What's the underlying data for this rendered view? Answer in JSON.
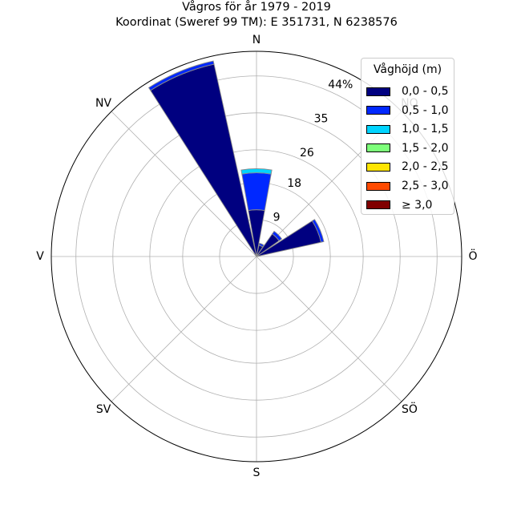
{
  "title": {
    "line1": "Vågros för år 1979 - 2019",
    "line2": "Koordinat (Sweref 99 TM): E 351731, N 6238576"
  },
  "chart_data": {
    "type": "polar-bar",
    "title": "Vågros för år 1979 - 2019",
    "subtitle": "Koordinat (Sweref 99 TM): E 351731, N 6238576",
    "radial_unit": "%",
    "rmax": 50,
    "radial_ticks": [
      9,
      18,
      26,
      35,
      44
    ],
    "radial_tick_labels": [
      "9",
      "18",
      "26",
      "35",
      "44%"
    ],
    "grid": true,
    "direction_labels": [
      {
        "angle": 0,
        "label": "N"
      },
      {
        "angle": 45,
        "label": "NO"
      },
      {
        "angle": 90,
        "label": "Ö"
      },
      {
        "angle": 135,
        "label": "SÖ"
      },
      {
        "angle": 180,
        "label": "S"
      },
      {
        "angle": 225,
        "label": "SV"
      },
      {
        "angle": 270,
        "label": "V"
      },
      {
        "angle": 315,
        "label": "NV"
      }
    ],
    "sector_width_deg": 22.5,
    "directions": [
      0,
      22.5,
      45,
      67.5,
      90,
      112.5,
      135,
      157.5,
      180,
      202.5,
      225,
      247.5,
      270,
      292.5,
      315,
      337.5
    ],
    "legend_title": "Våghöjd (m)",
    "legend_position": "top-right",
    "series": [
      {
        "name": "0,0 - 0,5",
        "color": "#000080",
        "values": [
          11.4,
          2.8,
          6.7,
          16.1,
          0,
          0,
          0,
          0,
          0,
          0,
          0,
          0,
          0,
          0,
          0,
          48.0
        ]
      },
      {
        "name": "0,5 - 1,0",
        "color": "#0028ff",
        "values": [
          9.0,
          0.5,
          0.8,
          0.7,
          0,
          0,
          0,
          0,
          0,
          0,
          0,
          0,
          0,
          0,
          0,
          0.8
        ]
      },
      {
        "name": "1,0 - 1,5",
        "color": "#00d4ff",
        "values": [
          1.0,
          0,
          0,
          0,
          0,
          0,
          0,
          0,
          0,
          0,
          0,
          0,
          0,
          0,
          0,
          0
        ]
      },
      {
        "name": "1,5 - 2,0",
        "color": "#7dff7a",
        "values": [
          0,
          0,
          0,
          0,
          0,
          0,
          0,
          0,
          0,
          0,
          0,
          0,
          0,
          0,
          0,
          0
        ]
      },
      {
        "name": "2,0 - 2,5",
        "color": "#ffe500",
        "values": [
          0,
          0,
          0,
          0,
          0,
          0,
          0,
          0,
          0,
          0,
          0,
          0,
          0,
          0,
          0,
          0
        ]
      },
      {
        "name": "2,5 - 3,0",
        "color": "#ff4a00",
        "values": [
          0,
          0,
          0,
          0,
          0,
          0,
          0,
          0,
          0,
          0,
          0,
          0,
          0,
          0,
          0,
          0
        ]
      },
      {
        "name": "≥ 3,0",
        "color": "#800000",
        "values": [
          0,
          0,
          0,
          0,
          0,
          0,
          0,
          0,
          0,
          0,
          0,
          0,
          0,
          0,
          0,
          0
        ]
      }
    ]
  }
}
